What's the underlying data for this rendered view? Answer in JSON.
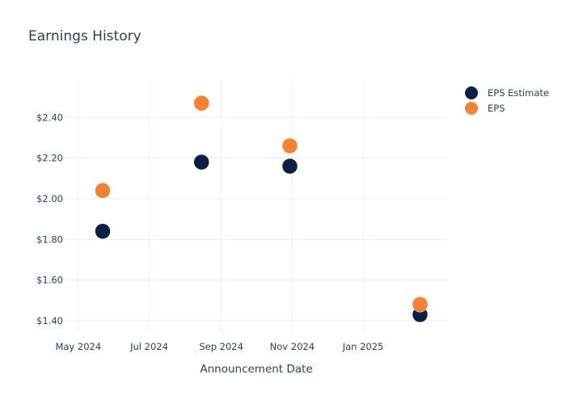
{
  "chart_data": {
    "type": "scatter",
    "title": "Earnings History",
    "xlabel": "Announcement Date",
    "ylabel": "",
    "x_ticks": [
      {
        "date": "2024-05-01",
        "label": "May 2024"
      },
      {
        "date": "2024-07-01",
        "label": "Jul 2024"
      },
      {
        "date": "2024-09-01",
        "label": "Sep 2024"
      },
      {
        "date": "2024-11-01",
        "label": "Nov 2024"
      },
      {
        "date": "2025-01-01",
        "label": "Jan 2025"
      }
    ],
    "y_ticks": [
      {
        "value": 1.4,
        "label": "$1.40"
      },
      {
        "value": 1.6,
        "label": "$1.60"
      },
      {
        "value": 1.8,
        "label": "$1.80"
      },
      {
        "value": 2.0,
        "label": "$2.00"
      },
      {
        "value": 2.2,
        "label": "$2.20"
      },
      {
        "value": 2.4,
        "label": "$2.40"
      }
    ],
    "xlim": [
      "2024-04-20",
      "2025-03-15"
    ],
    "ylim": [
      1.34,
      2.58
    ],
    "grid": true,
    "legend_position": "top-right",
    "series": [
      {
        "name": "EPS Estimate",
        "color": "#0a1f44",
        "points": [
          {
            "x": "2024-05-22",
            "y": 1.84
          },
          {
            "x": "2024-08-15",
            "y": 2.18
          },
          {
            "x": "2024-10-30",
            "y": 2.16
          },
          {
            "x": "2025-02-19",
            "y": 1.43
          }
        ]
      },
      {
        "name": "EPS",
        "color": "#f58232",
        "points": [
          {
            "x": "2024-05-22",
            "y": 2.04
          },
          {
            "x": "2024-08-15",
            "y": 2.47
          },
          {
            "x": "2024-10-30",
            "y": 2.26
          },
          {
            "x": "2025-02-19",
            "y": 1.48
          }
        ]
      }
    ]
  }
}
